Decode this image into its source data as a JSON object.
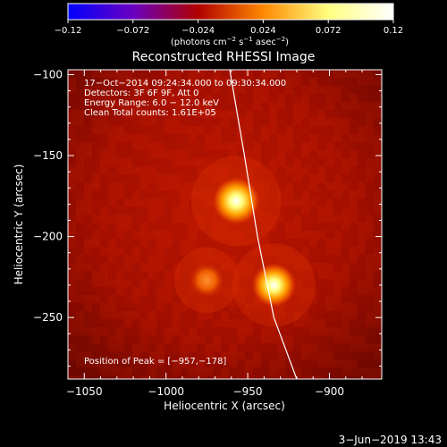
{
  "chart_data": {
    "type": "heatmap",
    "title": "Reconstructed RHESSI Image",
    "xlabel": "Heliocentric X (arcsec)",
    "ylabel": "Heliocentric Y (arcsec)",
    "xlim": [
      -1060,
      -868
    ],
    "ylim": [
      -288,
      -97
    ],
    "x_ticks": [
      -1050,
      -1000,
      -950,
      -900
    ],
    "y_ticks": [
      -100,
      -150,
      -200,
      -250
    ],
    "x_tick_labels": [
      "−1050",
      "−1000",
      "−950",
      "−900"
    ],
    "y_tick_labels": [
      "−100",
      "−150",
      "−200",
      "−250"
    ],
    "grid": false,
    "colorbar": {
      "range": [
        -0.12,
        0.12
      ],
      "ticks": [
        -0.12,
        -0.072,
        -0.024,
        0.024,
        0.072,
        0.12
      ],
      "tick_labels": [
        "−0.12",
        "−0.072",
        "−0.024",
        "0.024",
        "0.072",
        "0.12"
      ],
      "units_parts": [
        "(photons cm",
        "−2",
        " s",
        "−1",
        " asec",
        "−2",
        ")"
      ],
      "colors": [
        "#0000ff",
        "#6a00c0",
        "#b00000",
        "#ff8800",
        "#ffff80",
        "#ffffff"
      ]
    },
    "annotations": [
      "17−Oct−2014 09:24:34.000 to 09:30:34.000",
      "Detectors: 3F 6F 9F, Att 0",
      "Energy Range: 6.0 − 12.0 keV",
      "Clean    Total counts: 1.61E+05"
    ],
    "peak_label": "Position of Peak = [−957,−178]",
    "sources": [
      {
        "x": -957,
        "y": -178,
        "intensity": 1.0
      },
      {
        "x": -934,
        "y": -230,
        "intensity": 0.85
      },
      {
        "x": -975,
        "y": -227,
        "intensity": 0.45
      }
    ],
    "limb_curve": [
      [
        -961,
        -97
      ],
      [
        -952,
        -150
      ],
      [
        -944,
        -200
      ],
      [
        -934,
        -250
      ],
      [
        -920,
        -288
      ]
    ],
    "colors": {
      "background": "#000000",
      "frame": "#ffffff",
      "limb": "#ffffff"
    }
  },
  "footer": {
    "timestamp": "3−Jun−2019 13:43"
  }
}
